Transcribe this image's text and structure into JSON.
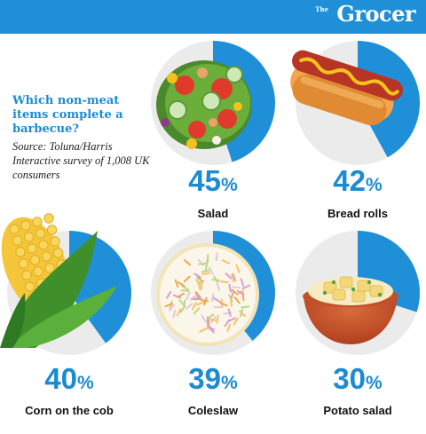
{
  "brand": {
    "the": "The",
    "name": "Grocer"
  },
  "intro": {
    "title": "Which non-meat items complete a barbecue?",
    "source": "Source: Toluna/Harris Interactive survey of 1,008 UK consumers"
  },
  "colors": {
    "accent": "#1f8fd8",
    "track": "#ebebeb",
    "text": "#111111"
  },
  "chart_data": {
    "type": "pie",
    "title": "Which non-meat items complete a barbecue?",
    "unit": "%",
    "categories": [
      "Salad",
      "Bread rolls",
      "Corn on the cob",
      "Coleslaw",
      "Potato salad"
    ],
    "values": [
      45,
      42,
      40,
      39,
      30
    ],
    "items": [
      {
        "label": "Salad",
        "value": 45,
        "display": "45",
        "icon": "salad-icon"
      },
      {
        "label": "Bread rolls",
        "value": 42,
        "display": "42",
        "icon": "hot-dog-icon"
      },
      {
        "label": "Corn on the cob",
        "value": 40,
        "display": "40",
        "icon": "corn-icon"
      },
      {
        "label": "Coleslaw",
        "value": 39,
        "display": "39",
        "icon": "coleslaw-icon"
      },
      {
        "label": "Potato salad",
        "value": 30,
        "display": "30",
        "icon": "potato-salad-icon"
      }
    ]
  }
}
